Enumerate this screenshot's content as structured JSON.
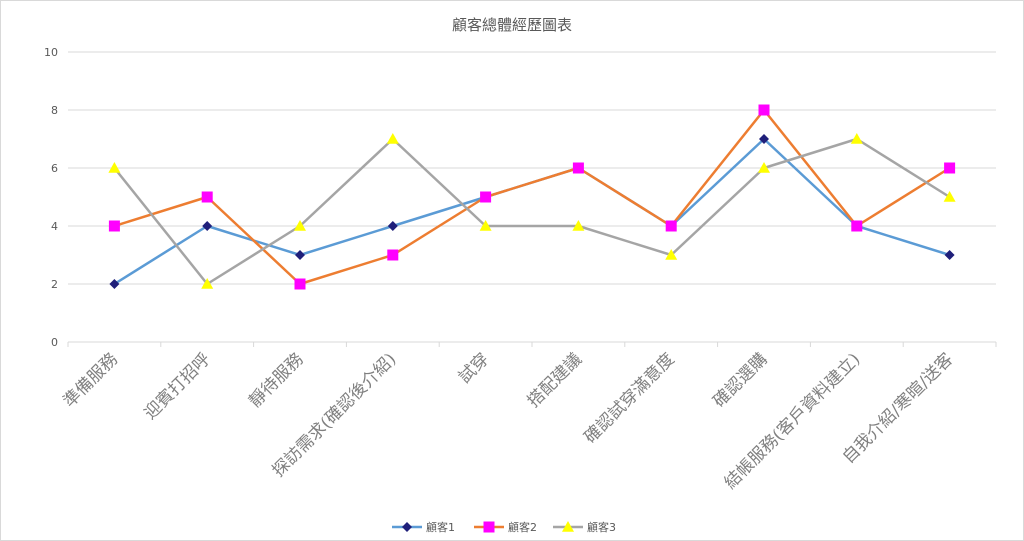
{
  "chart_data": {
    "type": "line",
    "title": "顧客總體經歷圖表",
    "xlabel": "",
    "ylabel": "",
    "categories": [
      "準備服務",
      "迎賓打招呼",
      "靜待服務",
      "探訪需求(確認後介紹)",
      "試穿",
      "搭配建議",
      "確認試穿滿意度",
      "確認選購",
      "結帳服務(客戶資料建立)",
      "自我介紹/寒暄/送客"
    ],
    "ylim": [
      0,
      10
    ],
    "yticks": [
      0,
      2,
      4,
      6,
      8,
      10
    ],
    "grid": true,
    "legend_position": "bottom",
    "series": [
      {
        "name": "顧客1",
        "values": [
          2,
          4,
          3,
          4,
          5,
          6,
          4,
          7,
          4,
          3
        ],
        "line_color": "#5b9bd5",
        "marker_color": "#1f1f7a",
        "marker": "diamond"
      },
      {
        "name": "顧客2",
        "values": [
          4,
          5,
          2,
          3,
          5,
          6,
          4,
          8,
          4,
          6
        ],
        "line_color": "#ed7d31",
        "marker_color": "#ff00ff",
        "marker": "square"
      },
      {
        "name": "顧客3",
        "values": [
          6,
          2,
          4,
          7,
          4,
          4,
          3,
          6,
          7,
          5
        ],
        "line_color": "#a5a5a5",
        "marker_color": "#ffff00",
        "marker": "triangle"
      }
    ]
  }
}
